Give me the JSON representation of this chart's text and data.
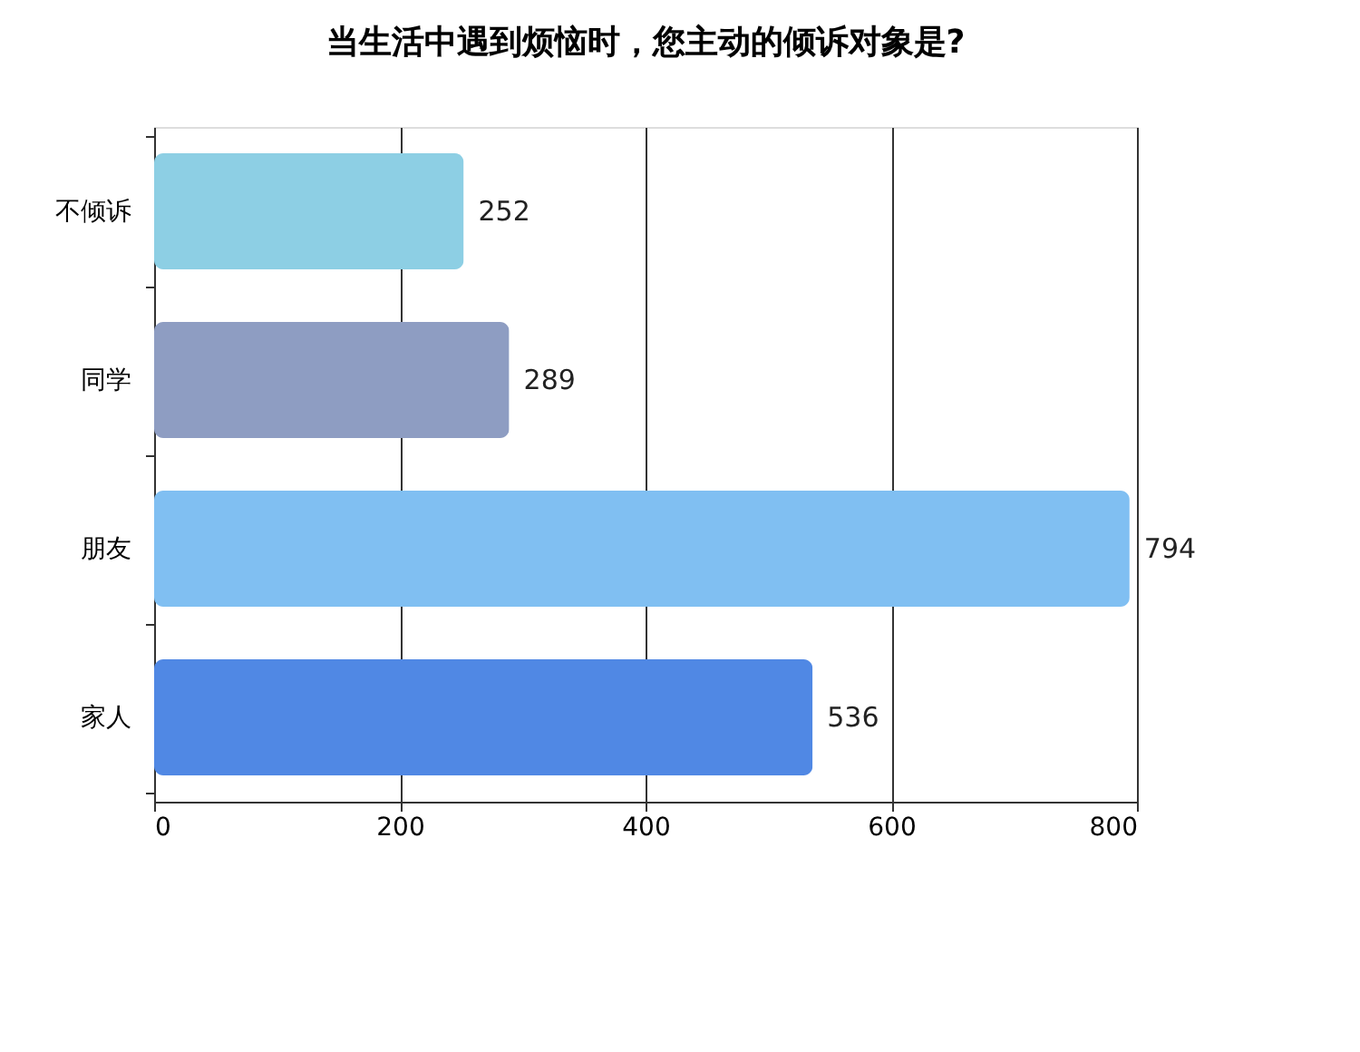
{
  "chart_data": {
    "type": "bar",
    "orientation": "horizontal",
    "title": "当生活中遇到烦恼时，您主动的倾诉对象是?",
    "categories": [
      "不倾诉",
      "同学",
      "朋友",
      "家人"
    ],
    "values": [
      252,
      289,
      794,
      536
    ],
    "colors": [
      "#8dcfe4",
      "#8e9dc2",
      "#80bff2",
      "#5088e4"
    ],
    "xlim": [
      0,
      800
    ],
    "xticks": [
      0,
      200,
      400,
      600,
      800
    ],
    "grid": "x",
    "data_labels": true,
    "legend": false
  }
}
